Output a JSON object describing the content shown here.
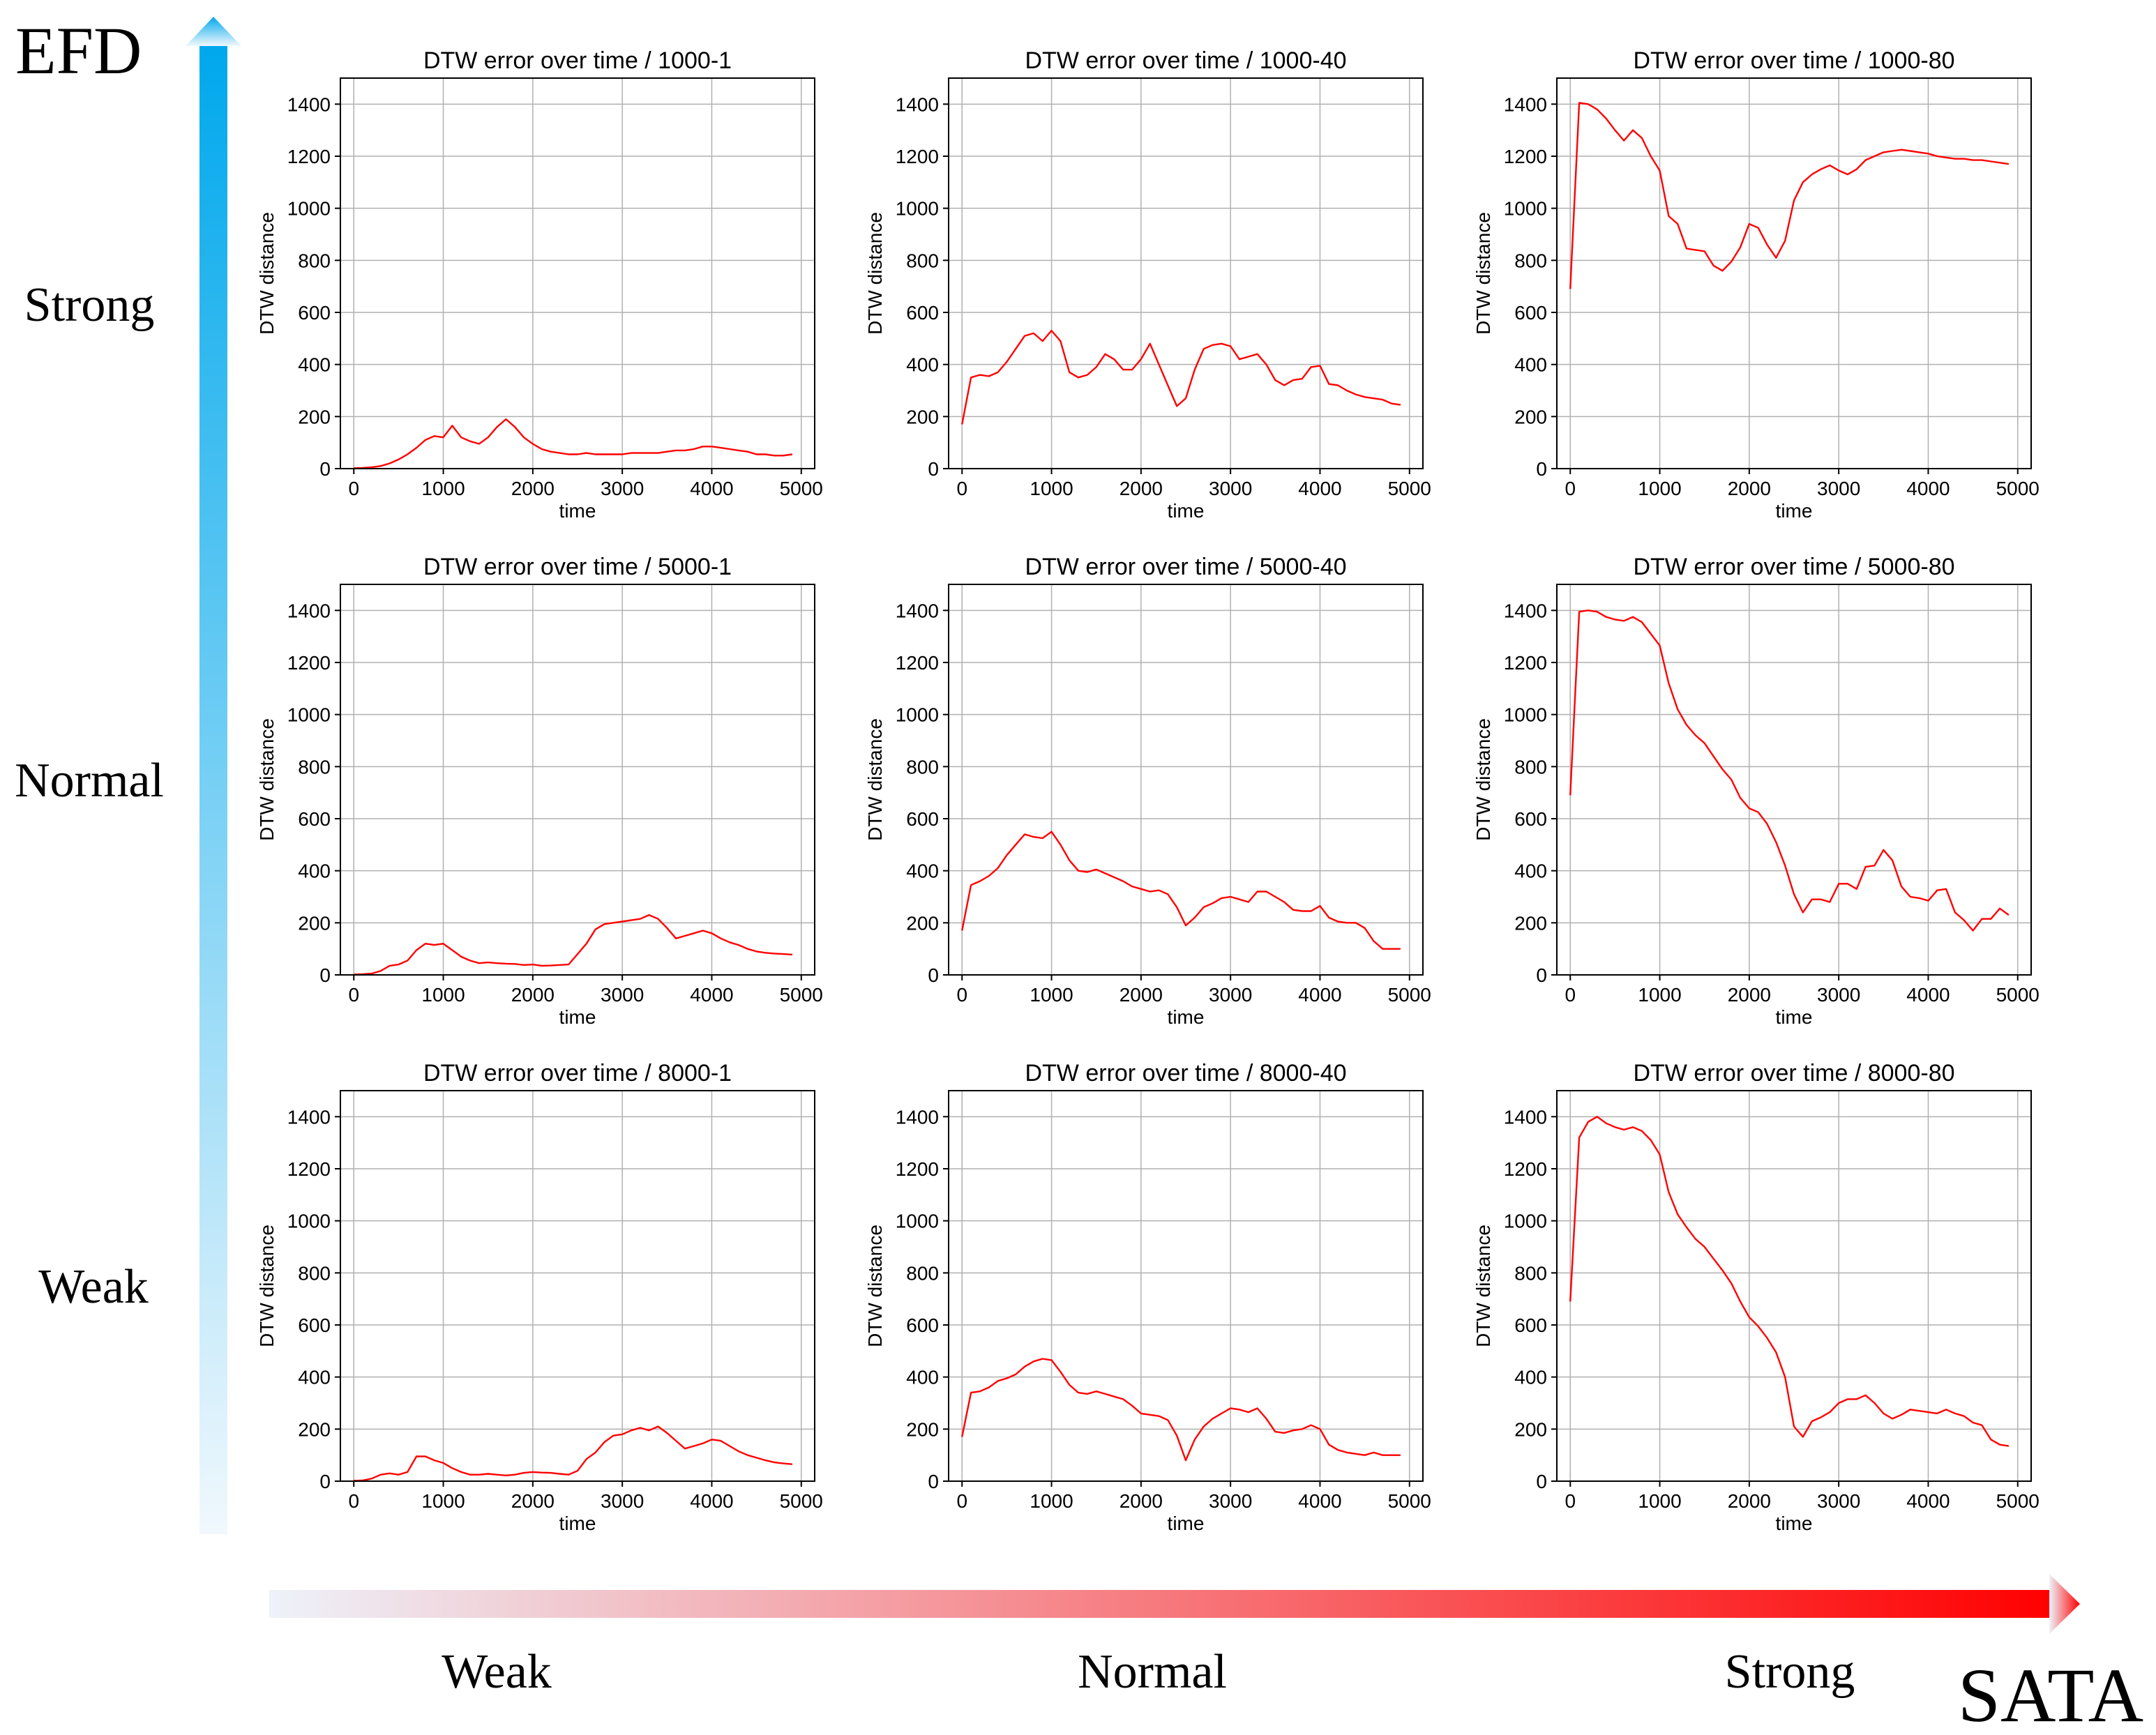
{
  "axes_labels": {
    "y_axis_title": "EFD",
    "x_axis_title": "SATA",
    "y_levels": [
      "Strong",
      "Normal",
      "Weak"
    ],
    "x_levels": [
      "Weak",
      "Normal",
      "Strong"
    ]
  },
  "colors": {
    "series": "#ff0000",
    "efd_arrow_top": "#00a8ec",
    "efd_arrow_bottom": "#f0f8fd",
    "sata_arrow_left": "#eef2fa",
    "sata_arrow_right": "#ff0000",
    "grid": "#b0b0b0"
  },
  "chart_data": [
    {
      "type": "line",
      "title": "DTW error over time / 1000-1",
      "xlabel": "time",
      "ylabel": "DTW distance",
      "xlim": [
        -150,
        5150
      ],
      "ylim": [
        0,
        1500
      ],
      "xticks": [
        0,
        1000,
        2000,
        3000,
        4000,
        5000
      ],
      "yticks": [
        0,
        200,
        400,
        600,
        800,
        1000,
        1200,
        1400
      ],
      "x": [
        0,
        100,
        200,
        300,
        400,
        500,
        600,
        700,
        800,
        900,
        1000,
        1100,
        1200,
        1300,
        1400,
        1500,
        1600,
        1700,
        1800,
        1900,
        2000,
        2100,
        2200,
        2300,
        2400,
        2500,
        2600,
        2700,
        2800,
        2900,
        3000,
        3100,
        3200,
        3300,
        3400,
        3500,
        3600,
        3700,
        3800,
        3900,
        4000,
        4100,
        4200,
        4300,
        4400,
        4500,
        4600,
        4700,
        4800,
        4900
      ],
      "y": [
        2,
        3,
        5,
        10,
        20,
        35,
        55,
        80,
        110,
        125,
        120,
        165,
        120,
        105,
        95,
        120,
        160,
        190,
        160,
        120,
        95,
        75,
        65,
        60,
        55,
        55,
        60,
        55,
        55,
        55,
        55,
        60,
        60,
        60,
        60,
        65,
        70,
        70,
        75,
        85,
        85,
        80,
        75,
        70,
        65,
        55,
        55,
        50,
        50,
        55
      ]
    },
    {
      "type": "line",
      "title": "DTW error over time / 1000-40",
      "xlabel": "time",
      "ylabel": "DTW distance",
      "xlim": [
        -150,
        5150
      ],
      "ylim": [
        0,
        1500
      ],
      "xticks": [
        0,
        1000,
        2000,
        3000,
        4000,
        5000
      ],
      "yticks": [
        0,
        200,
        400,
        600,
        800,
        1000,
        1200,
        1400
      ],
      "x": [
        0,
        100,
        200,
        300,
        400,
        500,
        600,
        700,
        800,
        900,
        1000,
        1100,
        1200,
        1300,
        1400,
        1500,
        1600,
        1700,
        1800,
        1900,
        2000,
        2100,
        2200,
        2300,
        2400,
        2500,
        2600,
        2700,
        2800,
        2900,
        3000,
        3100,
        3200,
        3300,
        3400,
        3500,
        3600,
        3700,
        3800,
        3900,
        4000,
        4100,
        4200,
        4300,
        4400,
        4500,
        4600,
        4700,
        4800,
        4900
      ],
      "y": [
        170,
        350,
        360,
        355,
        370,
        410,
        460,
        510,
        520,
        490,
        530,
        490,
        370,
        350,
        360,
        390,
        440,
        420,
        380,
        380,
        420,
        480,
        400,
        320,
        240,
        270,
        380,
        460,
        475,
        480,
        470,
        420,
        430,
        440,
        400,
        340,
        320,
        340,
        345,
        390,
        395,
        325,
        320,
        300,
        285,
        275,
        270,
        265,
        250,
        245
      ]
    },
    {
      "type": "line",
      "title": "DTW error over time / 1000-80",
      "xlabel": "time",
      "ylabel": "DTW distance",
      "xlim": [
        -150,
        5150
      ],
      "ylim": [
        0,
        1500
      ],
      "xticks": [
        0,
        1000,
        2000,
        3000,
        4000,
        5000
      ],
      "yticks": [
        0,
        200,
        400,
        600,
        800,
        1000,
        1200,
        1400
      ],
      "x": [
        0,
        100,
        200,
        300,
        400,
        500,
        600,
        700,
        800,
        900,
        1000,
        1100,
        1200,
        1300,
        1400,
        1500,
        1600,
        1700,
        1800,
        1900,
        2000,
        2100,
        2200,
        2300,
        2400,
        2500,
        2600,
        2700,
        2800,
        2900,
        3000,
        3100,
        3200,
        3300,
        3400,
        3500,
        3600,
        3700,
        3800,
        3900,
        4000,
        4100,
        4200,
        4300,
        4400,
        4500,
        4600,
        4700,
        4800,
        4900
      ],
      "y": [
        690,
        1405,
        1400,
        1380,
        1345,
        1300,
        1260,
        1300,
        1270,
        1200,
        1145,
        970,
        940,
        845,
        840,
        835,
        780,
        760,
        795,
        850,
        940,
        925,
        860,
        810,
        875,
        1030,
        1100,
        1130,
        1150,
        1165,
        1145,
        1130,
        1150,
        1185,
        1200,
        1215,
        1220,
        1225,
        1220,
        1215,
        1210,
        1200,
        1195,
        1190,
        1190,
        1185,
        1185,
        1180,
        1175,
        1170
      ]
    },
    {
      "type": "line",
      "title": "DTW error over time / 5000-1",
      "xlabel": "time",
      "ylabel": "DTW distance",
      "xlim": [
        -150,
        5150
      ],
      "ylim": [
        0,
        1500
      ],
      "xticks": [
        0,
        1000,
        2000,
        3000,
        4000,
        5000
      ],
      "yticks": [
        0,
        200,
        400,
        600,
        800,
        1000,
        1200,
        1400
      ],
      "x": [
        0,
        100,
        200,
        300,
        400,
        500,
        600,
        700,
        800,
        900,
        1000,
        1100,
        1200,
        1300,
        1400,
        1500,
        1600,
        1700,
        1800,
        1900,
        2000,
        2100,
        2200,
        2300,
        2400,
        2500,
        2600,
        2700,
        2800,
        2900,
        3000,
        3100,
        3200,
        3300,
        3400,
        3500,
        3600,
        3700,
        3800,
        3900,
        4000,
        4100,
        4200,
        4300,
        4400,
        4500,
        4600,
        4700,
        4800,
        4900
      ],
      "y": [
        2,
        3,
        5,
        15,
        35,
        40,
        55,
        95,
        120,
        115,
        120,
        95,
        70,
        55,
        45,
        48,
        45,
        43,
        42,
        38,
        40,
        35,
        36,
        38,
        40,
        80,
        120,
        175,
        195,
        200,
        205,
        210,
        215,
        230,
        215,
        180,
        140,
        150,
        160,
        170,
        160,
        140,
        125,
        115,
        100,
        90,
        85,
        82,
        80,
        78
      ]
    },
    {
      "type": "line",
      "title": "DTW error over time / 5000-40",
      "xlabel": "time",
      "ylabel": "DTW distance",
      "xlim": [
        -150,
        5150
      ],
      "ylim": [
        0,
        1500
      ],
      "xticks": [
        0,
        1000,
        2000,
        3000,
        4000,
        5000
      ],
      "yticks": [
        0,
        200,
        400,
        600,
        800,
        1000,
        1200,
        1400
      ],
      "x": [
        0,
        100,
        200,
        300,
        400,
        500,
        600,
        700,
        800,
        900,
        1000,
        1100,
        1200,
        1300,
        1400,
        1500,
        1600,
        1700,
        1800,
        1900,
        2000,
        2100,
        2200,
        2300,
        2400,
        2500,
        2600,
        2700,
        2800,
        2900,
        3000,
        3100,
        3200,
        3300,
        3400,
        3500,
        3600,
        3700,
        3800,
        3900,
        4000,
        4100,
        4200,
        4300,
        4400,
        4500,
        4600,
        4700,
        4800,
        4900
      ],
      "y": [
        170,
        345,
        360,
        380,
        410,
        460,
        500,
        540,
        530,
        525,
        550,
        500,
        440,
        400,
        395,
        405,
        390,
        375,
        360,
        340,
        330,
        320,
        325,
        310,
        260,
        190,
        220,
        260,
        275,
        295,
        300,
        290,
        280,
        320,
        320,
        300,
        280,
        250,
        245,
        245,
        265,
        220,
        205,
        200,
        200,
        180,
        130,
        100,
        100,
        100
      ]
    },
    {
      "type": "line",
      "title": "DTW error over time / 5000-80",
      "xlabel": "time",
      "ylabel": "DTW distance",
      "xlim": [
        -150,
        5150
      ],
      "ylim": [
        0,
        1500
      ],
      "xticks": [
        0,
        1000,
        2000,
        3000,
        4000,
        5000
      ],
      "yticks": [
        0,
        200,
        400,
        600,
        800,
        1000,
        1200,
        1400
      ],
      "x": [
        0,
        100,
        200,
        300,
        400,
        500,
        600,
        700,
        800,
        900,
        1000,
        1100,
        1200,
        1300,
        1400,
        1500,
        1600,
        1700,
        1800,
        1900,
        2000,
        2100,
        2200,
        2300,
        2400,
        2500,
        2600,
        2700,
        2800,
        2900,
        3000,
        3100,
        3200,
        3300,
        3400,
        3500,
        3600,
        3700,
        3800,
        3900,
        4000,
        4100,
        4200,
        4300,
        4400,
        4500,
        4600,
        4700,
        4800,
        4900
      ],
      "y": [
        690,
        1395,
        1400,
        1395,
        1375,
        1365,
        1360,
        1375,
        1355,
        1310,
        1265,
        1120,
        1020,
        960,
        920,
        890,
        840,
        790,
        750,
        680,
        640,
        625,
        580,
        510,
        420,
        310,
        240,
        290,
        290,
        280,
        350,
        350,
        330,
        415,
        420,
        480,
        440,
        340,
        300,
        295,
        285,
        325,
        330,
        240,
        210,
        170,
        215,
        215,
        255,
        230
      ]
    },
    {
      "type": "line",
      "title": "DTW error over time / 8000-1",
      "xlabel": "time",
      "ylabel": "DTW distance",
      "xlim": [
        -150,
        5150
      ],
      "ylim": [
        0,
        1500
      ],
      "xticks": [
        0,
        1000,
        2000,
        3000,
        4000,
        5000
      ],
      "yticks": [
        0,
        200,
        400,
        600,
        800,
        1000,
        1200,
        1400
      ],
      "x": [
        0,
        100,
        200,
        300,
        400,
        500,
        600,
        700,
        800,
        900,
        1000,
        1100,
        1200,
        1300,
        1400,
        1500,
        1600,
        1700,
        1800,
        1900,
        2000,
        2100,
        2200,
        2300,
        2400,
        2500,
        2600,
        2700,
        2800,
        2900,
        3000,
        3100,
        3200,
        3300,
        3400,
        3500,
        3600,
        3700,
        3800,
        3900,
        4000,
        4100,
        4200,
        4300,
        4400,
        4500,
        4600,
        4700,
        4800,
        4900
      ],
      "y": [
        2,
        3,
        10,
        25,
        30,
        25,
        35,
        95,
        95,
        80,
        70,
        50,
        35,
        25,
        25,
        28,
        25,
        22,
        25,
        32,
        35,
        33,
        32,
        28,
        25,
        40,
        85,
        110,
        150,
        175,
        180,
        195,
        205,
        195,
        210,
        185,
        155,
        125,
        135,
        145,
        160,
        155,
        135,
        115,
        100,
        90,
        80,
        72,
        68,
        65
      ]
    },
    {
      "type": "line",
      "title": "DTW error over time / 8000-40",
      "xlabel": "time",
      "ylabel": "DTW distance",
      "xlim": [
        -150,
        5150
      ],
      "ylim": [
        0,
        1500
      ],
      "xticks": [
        0,
        1000,
        2000,
        3000,
        4000,
        5000
      ],
      "yticks": [
        0,
        200,
        400,
        600,
        800,
        1000,
        1200,
        1400
      ],
      "x": [
        0,
        100,
        200,
        300,
        400,
        500,
        600,
        700,
        800,
        900,
        1000,
        1100,
        1200,
        1300,
        1400,
        1500,
        1600,
        1700,
        1800,
        1900,
        2000,
        2100,
        2200,
        2300,
        2400,
        2500,
        2600,
        2700,
        2800,
        2900,
        3000,
        3100,
        3200,
        3300,
        3400,
        3500,
        3600,
        3700,
        3800,
        3900,
        4000,
        4100,
        4200,
        4300,
        4400,
        4500,
        4600,
        4700,
        4800,
        4900
      ],
      "y": [
        170,
        340,
        345,
        360,
        385,
        395,
        410,
        440,
        460,
        470,
        465,
        420,
        370,
        340,
        335,
        345,
        335,
        325,
        315,
        290,
        260,
        255,
        250,
        235,
        175,
        80,
        160,
        210,
        240,
        260,
        280,
        275,
        265,
        280,
        240,
        190,
        185,
        195,
        200,
        215,
        200,
        140,
        120,
        110,
        105,
        100,
        110,
        100,
        100,
        100
      ]
    },
    {
      "type": "line",
      "title": "DTW error over time / 8000-80",
      "xlabel": "time",
      "ylabel": "DTW distance",
      "xlim": [
        -150,
        5150
      ],
      "ylim": [
        0,
        1500
      ],
      "xticks": [
        0,
        1000,
        2000,
        3000,
        4000,
        5000
      ],
      "yticks": [
        0,
        200,
        400,
        600,
        800,
        1000,
        1200,
        1400
      ],
      "x": [
        0,
        100,
        200,
        300,
        400,
        500,
        600,
        700,
        800,
        900,
        1000,
        1100,
        1200,
        1300,
        1400,
        1500,
        1600,
        1700,
        1800,
        1900,
        2000,
        2100,
        2200,
        2300,
        2400,
        2500,
        2600,
        2700,
        2800,
        2900,
        3000,
        3100,
        3200,
        3300,
        3400,
        3500,
        3600,
        3700,
        3800,
        3900,
        4000,
        4100,
        4200,
        4300,
        4400,
        4500,
        4600,
        4700,
        4800,
        4900
      ],
      "y": [
        690,
        1320,
        1380,
        1400,
        1375,
        1360,
        1350,
        1360,
        1345,
        1310,
        1255,
        1110,
        1025,
        975,
        930,
        900,
        855,
        810,
        760,
        690,
        630,
        595,
        550,
        495,
        400,
        210,
        170,
        230,
        245,
        265,
        300,
        315,
        315,
        330,
        300,
        260,
        240,
        255,
        275,
        270,
        265,
        260,
        275,
        260,
        250,
        225,
        215,
        160,
        140,
        135
      ]
    }
  ]
}
